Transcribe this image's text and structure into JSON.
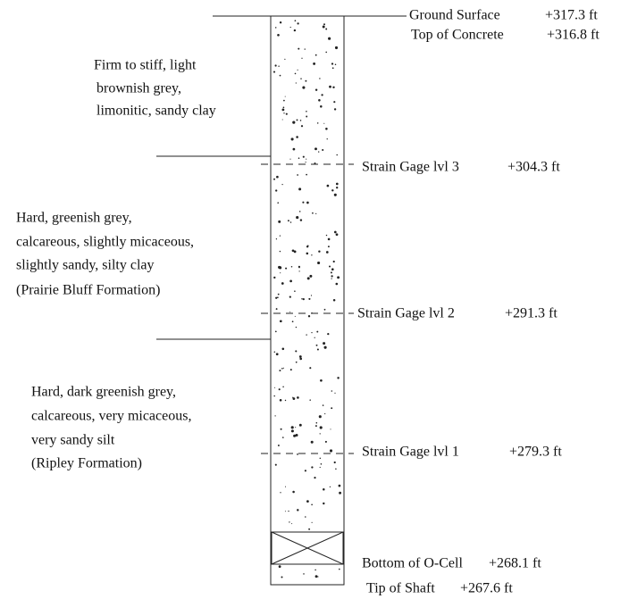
{
  "elevations": [
    {
      "name": "Ground Surface",
      "value": "+317.3 ft"
    },
    {
      "name": "Top of Concrete",
      "value": "+316.8 ft"
    },
    {
      "name": "Strain Gage lvl 3",
      "value": "+304.3 ft"
    },
    {
      "name": "Strain Gage lvl 2",
      "value": "+291.3 ft"
    },
    {
      "name": "Strain Gage lvl 1",
      "value": "+279.3 ft"
    },
    {
      "name": "Bottom of O-Cell",
      "value": "+268.1 ft"
    },
    {
      "name": "Tip of Shaft",
      "value": "+267.6 ft"
    }
  ],
  "layers": [
    {
      "lines": [
        "Firm to stiff, light",
        "brownish grey,",
        "limonitic, sandy clay"
      ]
    },
    {
      "lines": [
        "Hard, greenish grey,",
        "calcareous, slightly micaceous,",
        "slightly sandy, silty clay",
        "(Prairie Bluff Formation)"
      ]
    },
    {
      "lines": [
        "Hard, dark greenish grey,",
        "calcareous, very micaceous,",
        "very sandy silt",
        "(Ripley Formation)"
      ]
    }
  ]
}
